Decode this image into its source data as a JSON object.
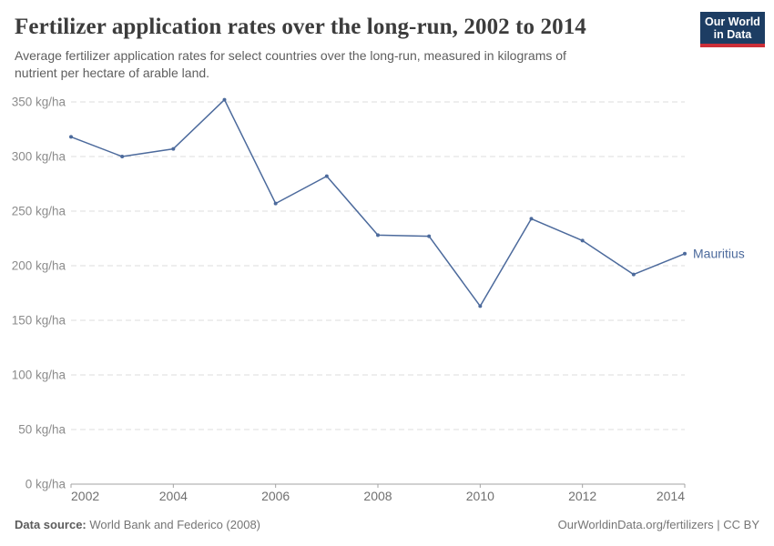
{
  "header": {
    "logo": {
      "line1": "Our World",
      "line2": "in Data",
      "bg_color": "#1d3d63",
      "stripe_color": "#cc2f38"
    }
  },
  "chart_data": {
    "type": "line",
    "title": "Fertilizer application rates over the long-run, 2002 to 2014",
    "subtitle": "Average fertilizer application rates for select countries over the long-run, measured in kilograms of nutrient per hectare of arable land.",
    "x": [
      2002,
      2003,
      2004,
      2005,
      2006,
      2007,
      2008,
      2009,
      2010,
      2011,
      2012,
      2013,
      2014
    ],
    "series": [
      {
        "name": "Mauritius",
        "color": "#4c6a9c",
        "values": [
          318,
          300,
          307,
          352,
          257,
          282,
          228,
          227,
          163,
          243,
          223,
          192,
          211
        ]
      }
    ],
    "xlabel": "",
    "ylabel": "",
    "y_suffix": " kg/ha",
    "yticks": [
      0,
      50,
      100,
      150,
      200,
      250,
      300,
      350
    ],
    "xticks": [
      2002,
      2004,
      2006,
      2008,
      2010,
      2012,
      2014
    ],
    "xlim": [
      2002,
      2014
    ],
    "ylim": [
      0,
      350
    ],
    "grid": "horizontal dashed lines, plot area only",
    "legend": "series label at right end of line"
  },
  "footer": {
    "datasource_label": "Data source:",
    "datasource_value": "World Bank and Federico (2008)",
    "link": "OurWorldinData.org/fertilizers",
    "separator": " | ",
    "license": "CC BY"
  }
}
